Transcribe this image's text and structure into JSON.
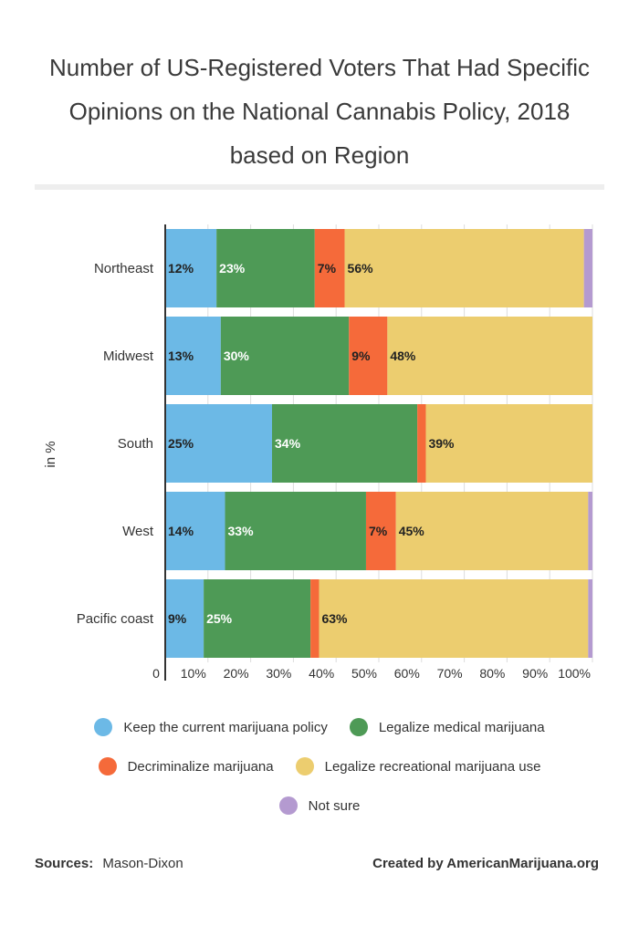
{
  "title_lines": [
    "Number of US-Registered Voters That Had Specific",
    "Opinions on the National Cannabis Policy, 2018",
    "based on Region"
  ],
  "sources_label": "Sources:",
  "sources_value": "Mason-Dixon",
  "credit": "Created by AmericanMarijuana.org",
  "colors": {
    "keep": "#6cb9e6",
    "medical": "#4e9a56",
    "decriminalize": "#f56a3a",
    "recreational": "#eccd6f",
    "not_sure": "#b49ad0"
  },
  "chart_data": {
    "type": "bar",
    "orientation": "horizontal",
    "stacked": true,
    "title": "Number of US-Registered Voters That Had Specific Opinions on the National Cannabis Policy, 2018 based on Region",
    "ylabel": "in %",
    "xlim": [
      0,
      100
    ],
    "x_ticks": [
      "0",
      "10%",
      "20%",
      "30%",
      "40%",
      "50%",
      "60%",
      "70%",
      "80%",
      "90%",
      "100%"
    ],
    "grid": true,
    "legend_position": "bottom",
    "categories": [
      "Northeast",
      "Midwest",
      "South",
      "West",
      "Pacific coast"
    ],
    "series": [
      {
        "name": "Keep the current marijuana policy",
        "color_key": "keep",
        "values": [
          12,
          13,
          25,
          14,
          9
        ],
        "labels": [
          "12%",
          "13%",
          "25%",
          "14%",
          "9%"
        ],
        "label_color": "#222222"
      },
      {
        "name": "Legalize medical marijuana",
        "color_key": "medical",
        "values": [
          23,
          30,
          34,
          33,
          25
        ],
        "labels": [
          "23%",
          "30%",
          "34%",
          "33%",
          "25%"
        ],
        "label_color": "#ffffff"
      },
      {
        "name": "Decriminalize marijuana",
        "color_key": "decriminalize",
        "values": [
          7,
          9,
          2,
          7,
          2
        ],
        "labels": [
          "7%",
          "9%",
          "",
          "7%",
          ""
        ],
        "label_color": "#222222"
      },
      {
        "name": "Legalize recreational marijuana use",
        "color_key": "recreational",
        "values": [
          56,
          48,
          39,
          45,
          63
        ],
        "labels": [
          "56%",
          "48%",
          "39%",
          "45%",
          "63%"
        ],
        "label_color": "#222222"
      },
      {
        "name": "Not sure",
        "color_key": "not_sure",
        "values": [
          2,
          0,
          0,
          1,
          1
        ],
        "labels": [
          "",
          "",
          "",
          "",
          ""
        ],
        "label_color": "#222222"
      }
    ]
  }
}
